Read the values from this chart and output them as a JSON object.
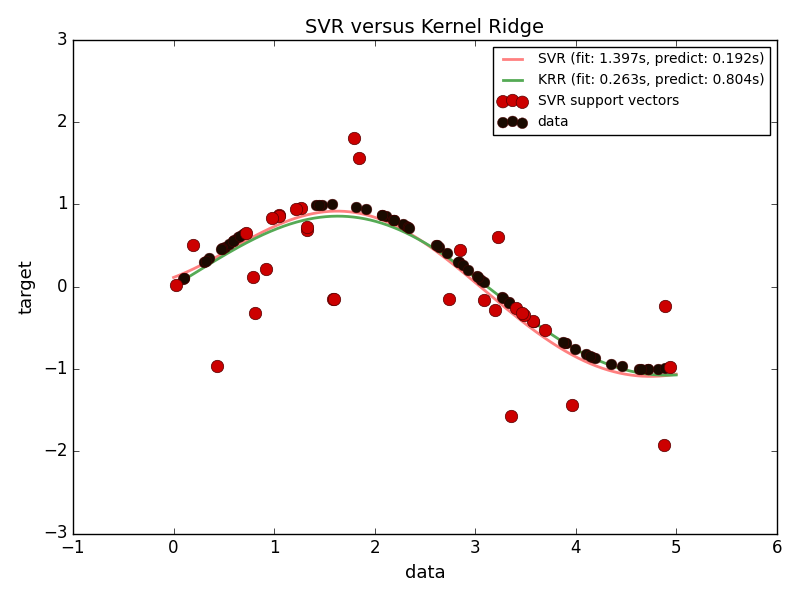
{
  "title": "SVR versus Kernel Ridge",
  "xlabel": "data",
  "ylabel": "target",
  "xlim": [
    -1,
    6
  ],
  "ylim": [
    -3,
    3
  ],
  "svr_label": "SVR (fit: 1.397s, predict: 0.192s)",
  "krr_label": "KRR (fit: 0.263s, predict: 0.804s)",
  "svr_color": "#ff8080",
  "krr_color": "#55aa55",
  "support_vector_label": "SVR support vectors",
  "data_label": "data",
  "figsize": [
    8.0,
    6.0
  ],
  "dpi": 100,
  "random_seed": 0
}
